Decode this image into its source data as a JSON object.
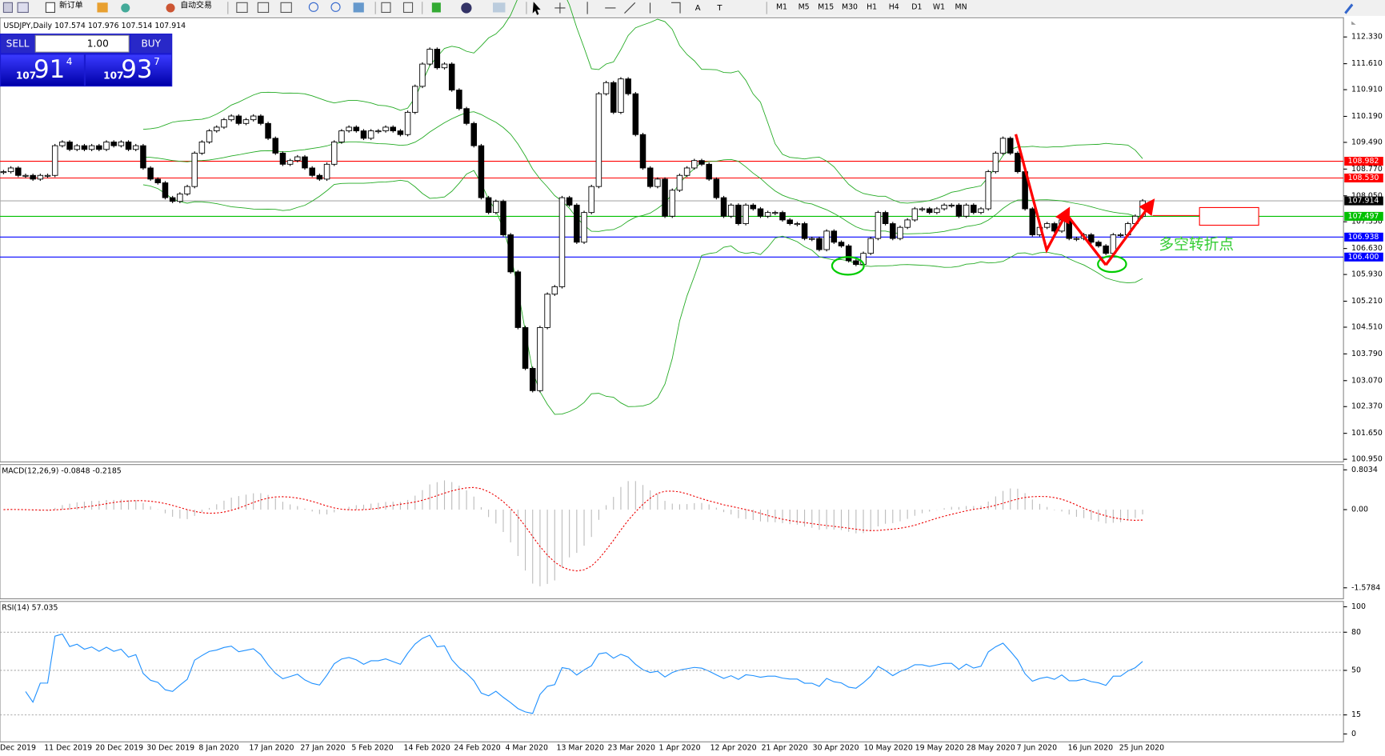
{
  "toolbar": {
    "new_order": "新订单",
    "auto_trading": "自动交易",
    "timeframes": [
      "M1",
      "M5",
      "M15",
      "M30",
      "H1",
      "H4",
      "D1",
      "W1",
      "MN"
    ]
  },
  "trade_panel": {
    "sell": "SELL",
    "buy": "BUY",
    "lots": "1.00",
    "sell_price": {
      "pre": "107",
      "big": "91",
      "sup": "4"
    },
    "buy_price": {
      "pre": "107",
      "big": "93",
      "sup": "7"
    }
  },
  "chart": {
    "symbol": "USDJPY,Daily",
    "ohlc": [
      107.574,
      107.976,
      107.514,
      107.914
    ],
    "ylim": [
      100.88,
      112.85
    ],
    "yticks": [
      {
        "value": 112.33,
        "label": "112.330"
      },
      {
        "value": 111.61,
        "label": "111.610"
      },
      {
        "value": 110.91,
        "label": "110.910"
      },
      {
        "value": 110.19,
        "label": "110.190"
      },
      {
        "value": 109.49,
        "label": "109.490"
      },
      {
        "value": 108.77,
        "label": "108.770"
      },
      {
        "value": 108.05,
        "label": "108.050"
      },
      {
        "value": 107.35,
        "label": "107.350"
      },
      {
        "value": 106.63,
        "label": "106.630"
      },
      {
        "value": 105.93,
        "label": "105.930"
      },
      {
        "value": 105.21,
        "label": "105.210"
      },
      {
        "value": 104.51,
        "label": "104.510"
      },
      {
        "value": 103.79,
        "label": "103.790"
      },
      {
        "value": 103.07,
        "label": "103.070"
      },
      {
        "value": 102.37,
        "label": "102.370"
      },
      {
        "value": 101.65,
        "label": "101.650"
      },
      {
        "value": 100.95,
        "label": "100.950"
      }
    ],
    "levels": [
      {
        "value": 108.982,
        "color": "#ff0000"
      },
      {
        "value": 108.53,
        "label": "108.530",
        "color": "#ff0000"
      },
      {
        "value": 107.497,
        "color": "#00c000"
      },
      {
        "value": 106.938,
        "color": "#0000ff"
      },
      {
        "value": 106.4,
        "label": "106.400",
        "color": "#0000ff"
      },
      {
        "value": 107.914,
        "color": "#000000"
      }
    ],
    "annotation": "多空转折点",
    "closes": [
      108.7,
      108.8,
      108.6,
      108.6,
      108.5,
      108.6,
      108.6,
      109.4,
      109.5,
      109.3,
      109.4,
      109.3,
      109.4,
      109.3,
      109.5,
      109.4,
      109.5,
      109.3,
      109.4,
      108.8,
      108.5,
      108.4,
      108.0,
      107.9,
      108.1,
      108.3,
      109.2,
      109.5,
      109.8,
      109.9,
      110.1,
      110.2,
      110.0,
      110.1,
      110.2,
      110.0,
      109.6,
      109.2,
      108.9,
      109.0,
      109.1,
      108.8,
      108.6,
      108.5,
      108.9,
      109.5,
      109.8,
      109.9,
      109.8,
      109.6,
      109.8,
      109.8,
      109.9,
      109.8,
      109.7,
      110.3,
      111.0,
      111.6,
      112.0,
      111.5,
      111.6,
      110.9,
      110.4,
      110.0,
      109.4,
      108.0,
      107.6,
      107.9,
      107.0,
      106.0,
      104.5,
      103.4,
      102.8,
      104.5,
      105.4,
      105.6,
      108.0,
      107.8,
      106.8,
      107.6,
      108.3,
      110.8,
      111.1,
      110.3,
      111.2,
      110.8,
      109.7,
      108.8,
      108.3,
      108.5,
      107.5,
      108.2,
      108.6,
      108.8,
      109.0,
      108.9,
      108.5,
      108.0,
      107.5,
      107.8,
      107.3,
      107.8,
      107.7,
      107.5,
      107.6,
      107.6,
      107.4,
      107.3,
      107.3,
      106.9,
      106.9,
      106.6,
      107.1,
      106.8,
      106.7,
      106.3,
      106.2,
      106.5,
      106.9,
      107.6,
      107.3,
      106.9,
      107.2,
      107.4,
      107.7,
      107.7,
      107.6,
      107.7,
      107.8,
      107.8,
      107.5,
      107.8,
      107.6,
      107.7,
      108.7,
      109.2,
      109.6,
      109.2,
      108.7,
      107.7,
      107.0,
      107.2,
      107.3,
      107.1,
      107.4,
      106.9,
      106.9,
      107.0,
      106.8,
      106.7,
      106.5,
      107.0,
      107.0,
      107.3,
      107.5,
      107.914
    ],
    "dates": [
      "Dec 2019",
      "11 Dec 2019",
      "20 Dec 2019",
      "30 Dec 2019",
      "8 Jan 2020",
      "17 Jan 2020",
      "27 Jan 2020",
      "5 Feb 2020",
      "14 Feb 2020",
      "24 Feb 2020",
      "4 Mar 2020",
      "13 Mar 2020",
      "23 Mar 2020",
      "1 Apr 2020",
      "12 Apr 2020",
      "21 Apr 2020",
      "30 Apr 2020",
      "10 May 2020",
      "19 May 2020",
      "28 May 2020",
      "7 Jun 2020",
      "16 Jun 2020",
      "25 Jun 2020"
    ]
  },
  "macd": {
    "label": "MACD(12,26,9)",
    "values": [
      -0.0848,
      -0.2185
    ],
    "ylim": [
      -1.8,
      0.91
    ],
    "yticks": [
      0.8034,
      {
        "value": 0,
        "label": "0.00"
      },
      -1.5784
    ]
  },
  "rsi": {
    "label": "RSI(14)",
    "value": 57.035,
    "ylim": [
      -6.2,
      104.2
    ],
    "yticks": [
      100,
      80,
      50,
      15,
      0
    ]
  }
}
